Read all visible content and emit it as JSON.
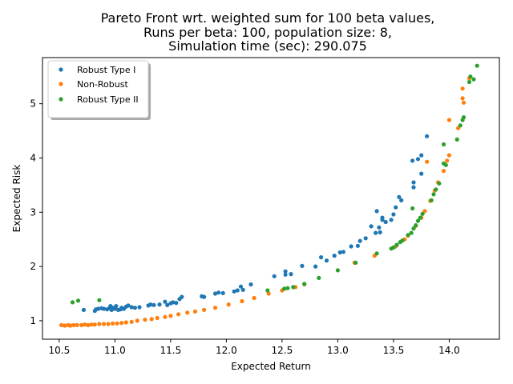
{
  "chart_data": {
    "type": "scatter",
    "title_lines": [
      "Pareto Front wrt. weighted sum for 100 beta values,",
      "Runs per beta: 100, population size: 8,",
      "Simulation time (sec): 290.075"
    ],
    "xlabel": "Expected Return",
    "ylabel": "Expected Risk",
    "xlim": [
      10.35,
      14.45
    ],
    "ylim": [
      0.66,
      5.85
    ],
    "xticks": [
      "10.5",
      "11.0",
      "11.5",
      "12.0",
      "12.5",
      "13.0",
      "13.5",
      "14.0"
    ],
    "yticks": [
      "1",
      "2",
      "3",
      "4",
      "5"
    ],
    "grid": false,
    "legend_position": "upper-left",
    "series": [
      {
        "name": "Robust Type I",
        "color": "#1f77b4",
        "points": [
          [
            10.72,
            1.2
          ],
          [
            10.82,
            1.18
          ],
          [
            10.83,
            1.21
          ],
          [
            10.85,
            1.22
          ],
          [
            10.88,
            1.23
          ],
          [
            10.9,
            1.22
          ],
          [
            10.93,
            1.21
          ],
          [
            10.95,
            1.23
          ],
          [
            10.96,
            1.27
          ],
          [
            10.97,
            1.2
          ],
          [
            10.98,
            1.24
          ],
          [
            11.0,
            1.22
          ],
          [
            11.01,
            1.27
          ],
          [
            11.03,
            1.2
          ],
          [
            11.05,
            1.21
          ],
          [
            11.06,
            1.24
          ],
          [
            11.08,
            1.22
          ],
          [
            11.1,
            1.26
          ],
          [
            11.12,
            1.28
          ],
          [
            11.15,
            1.25
          ],
          [
            11.18,
            1.24
          ],
          [
            11.22,
            1.25
          ],
          [
            11.3,
            1.28
          ],
          [
            11.32,
            1.3
          ],
          [
            11.35,
            1.29
          ],
          [
            11.4,
            1.3
          ],
          [
            11.45,
            1.35
          ],
          [
            11.47,
            1.29
          ],
          [
            11.5,
            1.32
          ],
          [
            11.52,
            1.34
          ],
          [
            11.55,
            1.33
          ],
          [
            11.58,
            1.4
          ],
          [
            11.6,
            1.44
          ],
          [
            11.78,
            1.45
          ],
          [
            11.8,
            1.44
          ],
          [
            11.9,
            1.5
          ],
          [
            11.93,
            1.52
          ],
          [
            11.97,
            1.51
          ],
          [
            12.07,
            1.54
          ],
          [
            12.1,
            1.56
          ],
          [
            12.13,
            1.63
          ],
          [
            12.15,
            1.57
          ],
          [
            12.22,
            1.67
          ],
          [
            12.43,
            1.82
          ],
          [
            12.53,
            1.85
          ],
          [
            12.53,
            1.91
          ],
          [
            12.58,
            1.86
          ],
          [
            12.68,
            2.01
          ],
          [
            12.8,
            2.0
          ],
          [
            12.85,
            2.17
          ],
          [
            12.9,
            2.11
          ],
          [
            12.97,
            2.2
          ],
          [
            13.02,
            2.26
          ],
          [
            13.05,
            2.27
          ],
          [
            13.12,
            2.37
          ],
          [
            13.18,
            2.38
          ],
          [
            13.2,
            2.47
          ],
          [
            13.25,
            2.52
          ],
          [
            13.3,
            2.74
          ],
          [
            13.34,
            2.62
          ],
          [
            13.35,
            3.02
          ],
          [
            13.37,
            2.72
          ],
          [
            13.38,
            2.63
          ],
          [
            13.4,
            2.86
          ],
          [
            13.4,
            2.9
          ],
          [
            13.43,
            2.82
          ],
          [
            13.48,
            2.86
          ],
          [
            13.5,
            2.96
          ],
          [
            13.52,
            3.09
          ],
          [
            13.55,
            3.28
          ],
          [
            13.57,
            3.22
          ],
          [
            13.67,
            3.95
          ],
          [
            13.68,
            3.55
          ],
          [
            13.68,
            3.46
          ],
          [
            13.72,
            3.98
          ],
          [
            13.75,
            4.05
          ],
          [
            13.75,
            3.71
          ],
          [
            13.8,
            4.4
          ]
        ]
      },
      {
        "name": "Non-Robust",
        "color": "#ff7f0e",
        "points": [
          [
            10.52,
            0.92
          ],
          [
            10.55,
            0.91
          ],
          [
            10.58,
            0.92
          ],
          [
            10.6,
            0.91
          ],
          [
            10.63,
            0.92
          ],
          [
            10.66,
            0.92
          ],
          [
            10.7,
            0.92
          ],
          [
            10.73,
            0.93
          ],
          [
            10.76,
            0.92
          ],
          [
            10.79,
            0.93
          ],
          [
            10.82,
            0.93
          ],
          [
            10.86,
            0.94
          ],
          [
            10.9,
            0.94
          ],
          [
            10.94,
            0.94
          ],
          [
            10.98,
            0.95
          ],
          [
            11.02,
            0.95
          ],
          [
            11.06,
            0.96
          ],
          [
            11.1,
            0.97
          ],
          [
            11.15,
            0.98
          ],
          [
            11.2,
            1.0
          ],
          [
            11.27,
            1.02
          ],
          [
            11.33,
            1.03
          ],
          [
            11.38,
            1.05
          ],
          [
            11.45,
            1.07
          ],
          [
            11.5,
            1.09
          ],
          [
            11.57,
            1.12
          ],
          [
            11.65,
            1.15
          ],
          [
            11.72,
            1.17
          ],
          [
            11.8,
            1.2
          ],
          [
            11.9,
            1.24
          ],
          [
            12.02,
            1.3
          ],
          [
            12.14,
            1.36
          ],
          [
            12.25,
            1.42
          ],
          [
            12.38,
            1.5
          ],
          [
            12.5,
            1.56
          ],
          [
            12.62,
            1.62
          ],
          [
            12.7,
            1.67
          ],
          [
            13.15,
            2.07
          ],
          [
            13.33,
            2.2
          ],
          [
            13.52,
            2.37
          ],
          [
            13.6,
            2.5
          ],
          [
            13.63,
            2.57
          ],
          [
            13.7,
            2.75
          ],
          [
            13.75,
            2.9
          ],
          [
            13.78,
            3.02
          ],
          [
            13.83,
            3.21
          ],
          [
            13.87,
            3.4
          ],
          [
            13.9,
            3.55
          ],
          [
            13.95,
            3.76
          ],
          [
            13.98,
            3.95
          ],
          [
            14.0,
            4.05
          ],
          [
            14.0,
            4.7
          ],
          [
            14.08,
            4.55
          ],
          [
            14.12,
            5.1
          ],
          [
            14.13,
            5.02
          ],
          [
            14.18,
            5.47
          ],
          [
            14.12,
            5.28
          ],
          [
            13.8,
            3.93
          ]
        ]
      },
      {
        "name": "Robust Type II",
        "color": "#2ca02c",
        "points": [
          [
            10.62,
            1.34
          ],
          [
            10.67,
            1.37
          ],
          [
            10.86,
            1.38
          ],
          [
            12.37,
            1.56
          ],
          [
            12.52,
            1.59
          ],
          [
            12.55,
            1.6
          ],
          [
            12.6,
            1.62
          ],
          [
            12.7,
            1.68
          ],
          [
            12.83,
            1.79
          ],
          [
            13.0,
            1.93
          ],
          [
            13.16,
            2.07
          ],
          [
            13.35,
            2.24
          ],
          [
            13.48,
            2.33
          ],
          [
            13.5,
            2.35
          ],
          [
            13.53,
            2.4
          ],
          [
            13.56,
            2.45
          ],
          [
            13.58,
            2.48
          ],
          [
            13.63,
            2.58
          ],
          [
            13.66,
            2.62
          ],
          [
            13.68,
            2.7
          ],
          [
            13.7,
            2.76
          ],
          [
            13.72,
            2.84
          ],
          [
            13.74,
            2.9
          ],
          [
            13.76,
            2.97
          ],
          [
            13.67,
            3.07
          ],
          [
            13.84,
            3.22
          ],
          [
            13.86,
            3.33
          ],
          [
            13.88,
            3.42
          ],
          [
            13.91,
            3.53
          ],
          [
            13.95,
            3.9
          ],
          [
            13.97,
            3.87
          ],
          [
            13.95,
            4.25
          ],
          [
            14.07,
            4.34
          ],
          [
            14.1,
            4.6
          ],
          [
            14.12,
            4.7
          ],
          [
            14.13,
            4.75
          ],
          [
            14.18,
            5.4
          ],
          [
            14.19,
            5.5
          ],
          [
            14.22,
            5.45
          ],
          [
            14.25,
            5.7
          ]
        ]
      }
    ]
  }
}
